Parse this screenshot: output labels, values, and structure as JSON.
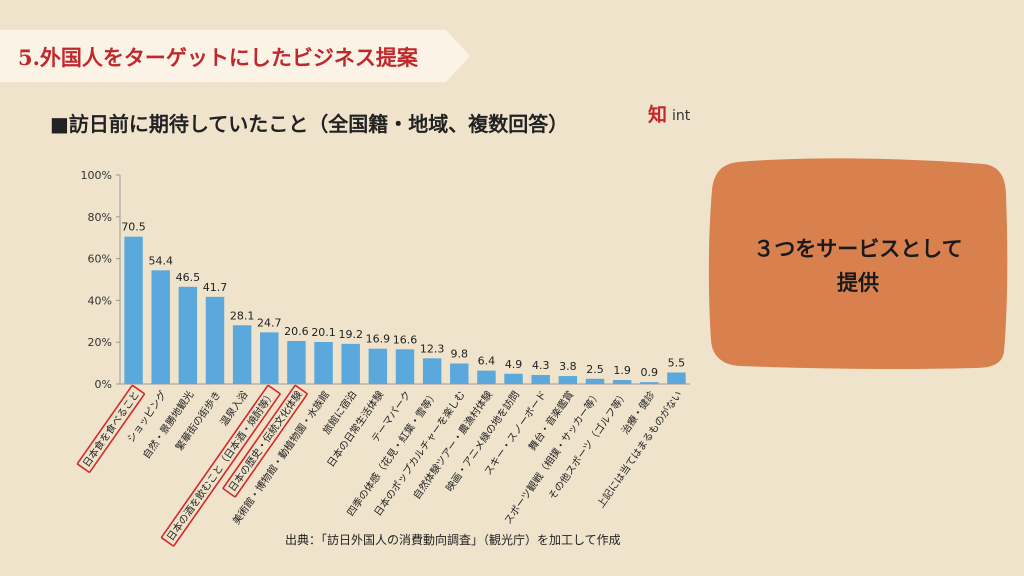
{
  "header": {
    "title": "5.外国人をターゲットにしたビジネス提案",
    "subtitle": "■訪日前に期待していたこと（全国籍・地域、複数回答）",
    "logo_text": "int",
    "logo_mark": "知"
  },
  "callout": {
    "line1": "３つをサービスとして",
    "line2": "提供",
    "color": "#d9814e"
  },
  "source_note": "出典：「訪日外国人の消費動向調査」（観光庁）を加工して作成",
  "colors": {
    "bar": "#5aa8dc",
    "highlight": "#d22a2a",
    "title": "#c0282c",
    "background": "#efe3cc",
    "banner": "#faf3e6"
  },
  "chart_data": {
    "type": "bar",
    "categories": [
      "日本食を食べること",
      "ショッピング",
      "自然・景勝地観光",
      "繁華街の街歩き",
      "温泉入浴",
      "日本の酒を飲むこと（日本酒・焼酎等）",
      "日本の歴史・伝統文化体験",
      "美術館・博物館・動植物園・水族館",
      "旅館に宿泊",
      "日本の日常生活体験",
      "テーマパーク",
      "四季の体感（花見・紅葉・雪等）",
      "日本のポップカルチャーを楽しむ",
      "自然体験ツアー・農漁村体験",
      "映画・アニメ縁の地を訪問",
      "スキー・スノーボード",
      "舞台・音楽鑑賞",
      "スポーツ観戦（相撲・サッカー等）",
      "その他スポーツ（ゴルフ等）",
      "治療・健診",
      "上記には当てはまるものがない"
    ],
    "values": [
      70.5,
      54.4,
      46.5,
      41.7,
      28.1,
      24.7,
      20.6,
      20.1,
      19.2,
      16.9,
      16.6,
      12.3,
      9.8,
      6.4,
      4.9,
      4.3,
      3.8,
      2.5,
      1.9,
      0.9,
      5.5
    ],
    "highlighted": [
      0,
      5,
      6
    ],
    "ylim": [
      0,
      100
    ],
    "yticks": [
      "0%",
      "20%",
      "40%",
      "60%",
      "80%",
      "100%"
    ],
    "xlabel": "",
    "ylabel": "",
    "grid": false
  }
}
